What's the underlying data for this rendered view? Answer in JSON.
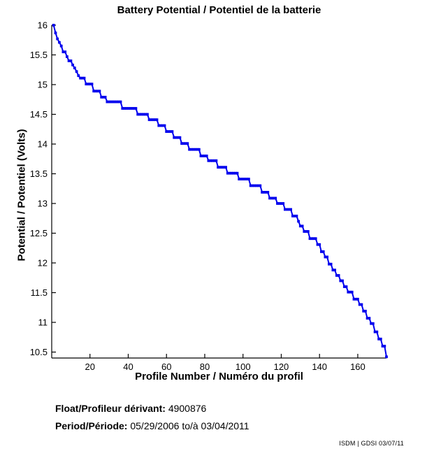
{
  "page": {
    "title": "Battery Potential / Potentiel de la batterie",
    "footer": {
      "float_label": "Float/Profileur dérivant:",
      "float_value": "4900876",
      "period_label": "Period/Période:",
      "period_value": "05/29/2006 to/à  03/04/2011"
    },
    "credit": "ISDM | GDSI 03/07/11"
  },
  "chart_data": {
    "type": "line",
    "title": "Battery Potential / Potentiel de la batterie",
    "xlabel": "Profile Number / Numéro du profil",
    "ylabel": "Potential / Potentiel (Volts)",
    "xlim": [
      0,
      175
    ],
    "ylim": [
      10.4,
      16
    ],
    "xticks": [
      20,
      40,
      60,
      80,
      100,
      120,
      140,
      160
    ],
    "yticks": [
      10.5,
      11,
      11.5,
      12,
      12.5,
      13,
      13.5,
      14,
      14.5,
      15,
      15.5,
      16
    ],
    "grid": false,
    "legend_position": "none",
    "line_color": "#0000EE",
    "marker": "square",
    "series_name": "Battery potential per profile (Volts)",
    "segments_note": "Each entry is [first_profile, last_profile, volts]; consecutive profiles share the same voltage plateau (values estimated from axes).",
    "segments": [
      [
        1,
        1,
        16.0
      ],
      [
        2,
        2,
        15.87
      ],
      [
        3,
        3,
        15.77
      ],
      [
        4,
        4,
        15.71
      ],
      [
        5,
        5,
        15.65
      ],
      [
        6,
        7,
        15.55
      ],
      [
        8,
        8,
        15.47
      ],
      [
        9,
        10,
        15.4
      ],
      [
        11,
        11,
        15.33
      ],
      [
        12,
        12,
        15.28
      ],
      [
        13,
        13,
        15.22
      ],
      [
        14,
        14,
        15.15
      ],
      [
        15,
        17,
        15.11
      ],
      [
        18,
        21,
        15.01
      ],
      [
        22,
        25,
        14.89
      ],
      [
        26,
        28,
        14.79
      ],
      [
        29,
        36,
        14.71
      ],
      [
        37,
        44,
        14.6
      ],
      [
        45,
        50,
        14.5
      ],
      [
        51,
        55,
        14.41
      ],
      [
        56,
        59,
        14.31
      ],
      [
        60,
        63,
        14.21
      ],
      [
        64,
        67,
        14.11
      ],
      [
        68,
        71,
        14.01
      ],
      [
        72,
        77,
        13.91
      ],
      [
        78,
        81,
        13.8
      ],
      [
        82,
        86,
        13.72
      ],
      [
        87,
        91,
        13.61
      ],
      [
        92,
        97,
        13.51
      ],
      [
        98,
        103,
        13.41
      ],
      [
        104,
        109,
        13.3
      ],
      [
        110,
        113,
        13.19
      ],
      [
        114,
        117,
        13.09
      ],
      [
        118,
        121,
        13.0
      ],
      [
        122,
        125,
        12.9
      ],
      [
        126,
        128,
        12.79
      ],
      [
        129,
        129,
        12.7
      ],
      [
        130,
        131,
        12.62
      ],
      [
        132,
        134,
        12.53
      ],
      [
        135,
        138,
        12.41
      ],
      [
        139,
        140,
        12.31
      ],
      [
        141,
        142,
        12.19
      ],
      [
        143,
        144,
        12.1
      ],
      [
        145,
        146,
        11.98
      ],
      [
        147,
        148,
        11.88
      ],
      [
        149,
        150,
        11.79
      ],
      [
        151,
        152,
        11.7
      ],
      [
        153,
        154,
        11.6
      ],
      [
        155,
        157,
        11.51
      ],
      [
        158,
        160,
        11.39
      ],
      [
        161,
        162,
        11.3
      ],
      [
        163,
        164,
        11.19
      ],
      [
        165,
        166,
        11.07
      ],
      [
        167,
        168,
        10.98
      ],
      [
        169,
        170,
        10.84
      ],
      [
        171,
        172,
        10.72
      ],
      [
        173,
        174,
        10.6
      ],
      [
        175,
        175,
        10.42
      ]
    ]
  }
}
